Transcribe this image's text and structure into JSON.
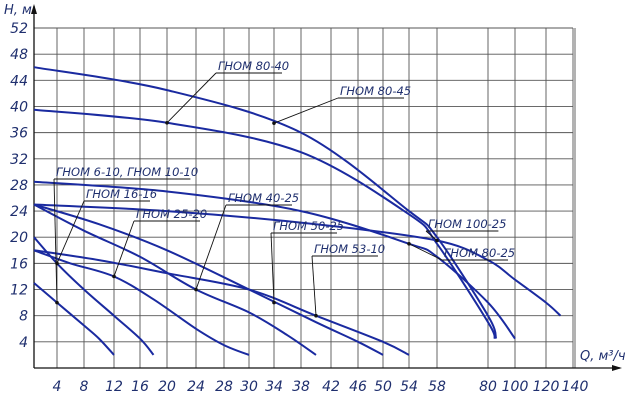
{
  "chart_data": {
    "type": "line",
    "xlabel": "Q, м³/ч",
    "ylabel": "H, м",
    "grid": true,
    "colors": {
      "curve": "#1a2aa0",
      "grid": "#555555",
      "axis": "#111111",
      "text": "#1f2f6e"
    },
    "x_ticks": [
      "4",
      "8",
      "12",
      "16",
      "20",
      "24",
      "28",
      "30",
      "34",
      "38",
      "42",
      "46",
      "50",
      "54",
      "58",
      "80",
      "100",
      "120",
      "140"
    ],
    "y_ticks": [
      4,
      8,
      12,
      16,
      20,
      24,
      28,
      32,
      36,
      40,
      44,
      48,
      52
    ],
    "ylim": [
      0,
      52
    ],
    "series": [
      {
        "name": "ГНОМ 6-10, ГНОМ 10-10",
        "x": [
          0,
          4,
          8,
          10,
          12
        ],
        "y": [
          13,
          10,
          6.5,
          4.5,
          2
        ]
      },
      {
        "name": "ГНОМ 16-16",
        "x": [
          0,
          4,
          8,
          12,
          16,
          18
        ],
        "y": [
          20,
          16,
          12,
          8,
          4.5,
          2
        ]
      },
      {
        "name": "ГНОМ 25-20",
        "x": [
          0,
          6,
          12,
          18,
          24,
          28,
          30
        ],
        "y": [
          18,
          16,
          14,
          10.5,
          6,
          3.5,
          2
        ]
      },
      {
        "name": "ГНОМ 40-25",
        "x": [
          0,
          8,
          16,
          24,
          30,
          36,
          40
        ],
        "y": [
          25,
          21,
          17,
          12,
          8.5,
          5,
          2
        ]
      },
      {
        "name": "ГНОМ 50-25",
        "x": [
          0,
          10,
          20,
          30,
          40,
          46,
          50
        ],
        "y": [
          25,
          22,
          18,
          12,
          7,
          4,
          2
        ]
      },
      {
        "name": "ГНОМ 53-10",
        "x": [
          0,
          10,
          20,
          30,
          40,
          50,
          54
        ],
        "y": [
          18,
          16.5,
          14.5,
          12,
          8,
          4,
          2
        ]
      },
      {
        "name": "ГНОМ 100-25",
        "x": [
          0,
          20,
          40,
          58,
          80,
          100,
          120,
          130
        ],
        "y": [
          25,
          24,
          22,
          19.5,
          16.5,
          13.5,
          10,
          8
        ]
      },
      {
        "name": "ГНОМ 80-25",
        "x": [
          0,
          20,
          38,
          54,
          58,
          80,
          100
        ],
        "y": [
          28.5,
          27,
          24,
          19,
          17,
          10,
          4.5
        ]
      },
      {
        "name": "ГНОМ 80-40",
        "x": [
          0,
          20,
          38,
          54,
          58,
          80,
          85
        ],
        "y": [
          39.5,
          37.5,
          33,
          23.5,
          19,
          7,
          4.5
        ]
      },
      {
        "name": "ГНОМ 80-45",
        "x": [
          0,
          20,
          38,
          54,
          58,
          80,
          86
        ],
        "y": [
          46,
          42.5,
          36,
          24,
          20,
          8,
          4.5
        ]
      }
    ],
    "labels": [
      {
        "text": "ГНОМ 80-40",
        "series": 8,
        "at": 20
      },
      {
        "text": "ГНОМ 80-45",
        "series": 9,
        "at": 34
      },
      {
        "text": "ГНОМ 6-10, ГНОМ 10-10",
        "series": 0,
        "at": 4
      },
      {
        "text": "ГНОМ 16-16",
        "series": 1,
        "at": 4
      },
      {
        "text": "ГНОМ 25-20",
        "series": 2,
        "at": 12
      },
      {
        "text": "ГНОМ 40-25",
        "series": 3,
        "at": 24
      },
      {
        "text": "ГНОМ 50-25",
        "series": 4,
        "at": 34
      },
      {
        "text": "ГНОМ 53-10",
        "series": 5,
        "at": 40
      },
      {
        "text": "ГНОМ 100-25",
        "series": 6,
        "at": 58
      },
      {
        "text": "ГНОМ 80-25",
        "series": 7,
        "at": 54
      }
    ]
  }
}
